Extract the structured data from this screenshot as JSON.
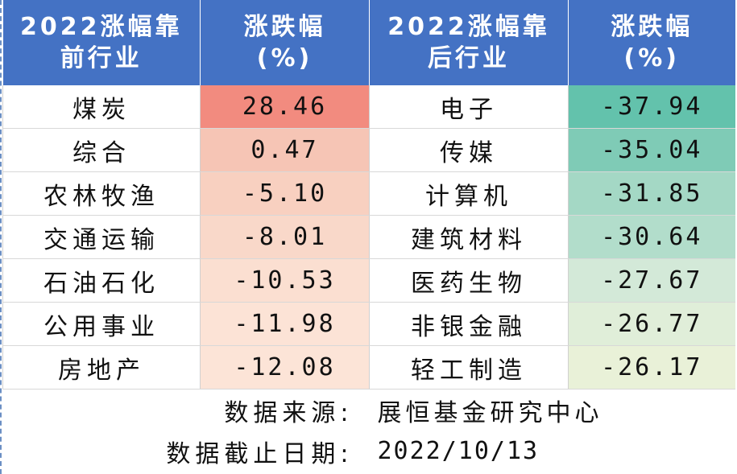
{
  "header": {
    "col1": [
      "2022涨幅靠",
      "前行业"
    ],
    "col2": [
      "涨跌幅",
      "(%)"
    ],
    "col3": [
      "2022涨幅靠",
      "后行业"
    ],
    "col4": [
      "涨跌幅",
      "(%)"
    ]
  },
  "rows": [
    {
      "top_name": "煤炭",
      "top_value": "28.46",
      "top_color": "#f28b7f",
      "bottom_name": "电子",
      "bottom_value": "-37.94",
      "bottom_color": "#63c2ac"
    },
    {
      "top_name": "综合",
      "top_value": "0.47",
      "top_color": "#f6c5b5",
      "bottom_name": "传媒",
      "bottom_value": "-35.04",
      "bottom_color": "#7fcbb6"
    },
    {
      "top_name": "农林牧渔",
      "top_value": "-5.10",
      "top_color": "#f8d0c0",
      "bottom_name": "计算机",
      "bottom_value": "-31.85",
      "bottom_color": "#a4d8c5"
    },
    {
      "top_name": "交通运输",
      "top_value": "-8.01",
      "top_color": "#f9d8c9",
      "bottom_name": "建筑材料",
      "bottom_value": "-30.64",
      "bottom_color": "#b2ddcb"
    },
    {
      "top_name": "石油石化",
      "top_value": "-10.53",
      "top_color": "#fbdfd1",
      "bottom_name": "医药生物",
      "bottom_value": "-27.67",
      "bottom_color": "#d3e9d8"
    },
    {
      "top_name": "公用事业",
      "top_value": "-11.98",
      "top_color": "#fce3d6",
      "bottom_name": "非银金融",
      "bottom_value": "-26.77",
      "bottom_color": "#e0eed9"
    },
    {
      "top_name": "房地产",
      "top_value": "-12.08",
      "top_color": "#fce4d7",
      "bottom_name": "轻工制造",
      "bottom_value": "-26.17",
      "bottom_color": "#e9f1d8"
    }
  ],
  "footer": {
    "source_label": "数据来源:",
    "source_value": "展恒基金研究中心",
    "date_label": "数据截止日期:",
    "date_value": "2022/10/13"
  }
}
